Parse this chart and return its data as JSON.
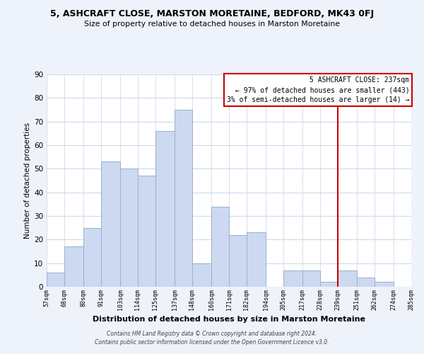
{
  "title": "5, ASHCRAFT CLOSE, MARSTON MORETAINE, BEDFORD, MK43 0FJ",
  "subtitle": "Size of property relative to detached houses in Marston Moretaine",
  "xlabel": "Distribution of detached houses by size in Marston Moretaine",
  "ylabel": "Number of detached properties",
  "bar_edges": [
    57,
    68,
    80,
    91,
    103,
    114,
    125,
    137,
    148,
    160,
    171,
    182,
    194,
    205,
    217,
    228,
    239,
    251,
    262,
    274,
    285
  ],
  "bar_heights": [
    6,
    17,
    25,
    53,
    50,
    47,
    66,
    75,
    10,
    34,
    22,
    23,
    0,
    7,
    7,
    2,
    7,
    4,
    2,
    0
  ],
  "bar_color": "#ccd9f0",
  "bar_edge_color": "#9ab0d0",
  "tick_labels": [
    "57sqm",
    "68sqm",
    "80sqm",
    "91sqm",
    "103sqm",
    "114sqm",
    "125sqm",
    "137sqm",
    "148sqm",
    "160sqm",
    "171sqm",
    "182sqm",
    "194sqm",
    "205sqm",
    "217sqm",
    "228sqm",
    "239sqm",
    "251sqm",
    "262sqm",
    "274sqm",
    "285sqm"
  ],
  "vline_x": 239,
  "vline_color": "#cc0000",
  "ylim": [
    0,
    90
  ],
  "yticks": [
    0,
    10,
    20,
    30,
    40,
    50,
    60,
    70,
    80,
    90
  ],
  "annotation_title": "5 ASHCRAFT CLOSE: 237sqm",
  "annotation_line1": "← 97% of detached houses are smaller (443)",
  "annotation_line2": "3% of semi-detached houses are larger (14) →",
  "footer_line1": "Contains HM Land Registry data © Crown copyright and database right 2024.",
  "footer_line2": "Contains public sector information licensed under the Open Government Licence v3.0.",
  "bg_color": "#eef2fb",
  "plot_bg_color": "#ffffff",
  "grid_color": "#d0d8ec"
}
